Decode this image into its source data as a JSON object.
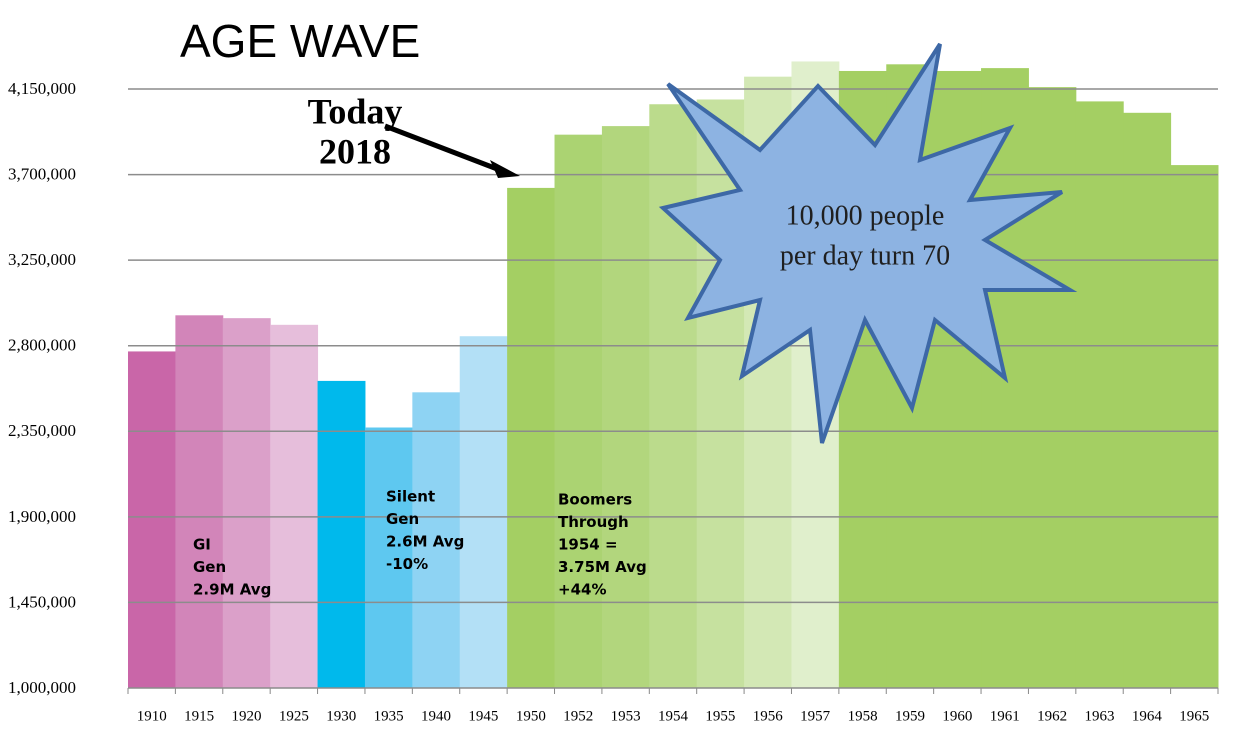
{
  "chart_data": {
    "type": "bar",
    "title": "AGE WAVE",
    "categories": [
      "1910",
      "1915",
      "1920",
      "1925",
      "1930",
      "1935",
      "1940",
      "1945",
      "1950",
      "1952",
      "1953",
      "1954",
      "1955",
      "1956",
      "1957",
      "1958",
      "1959",
      "1960",
      "1961",
      "1962",
      "1963",
      "1964",
      "1965"
    ],
    "values": [
      2770000,
      2960000,
      2945000,
      2910000,
      2615000,
      2370000,
      2555000,
      2850000,
      3630000,
      3910000,
      3955000,
      4070000,
      4095000,
      4215000,
      4295000,
      4245000,
      4280000,
      4245000,
      4260000,
      4160000,
      4085000,
      4025000,
      3750000
    ],
    "colors": [
      "#c966a8",
      "#d285b9",
      "#dba0c9",
      "#e6bedb",
      "#00b9ec",
      "#5ec8f0",
      "#8ed3f3",
      "#b3e0f6",
      "#a4cf63",
      "#abd372",
      "#b2d67d",
      "#bbdb8c",
      "#c6e19f",
      "#d3e8b5",
      "#e0efcc",
      "#a4cf63",
      "#a4cf63",
      "#a4cf63",
      "#a4cf63",
      "#a4cf63",
      "#a4cf63",
      "#a4cf63",
      "#a4cf63"
    ],
    "ylim": [
      1000000,
      4350000
    ],
    "yticks": [
      {
        "value": 1000000,
        "label": "1,000,000"
      },
      {
        "value": 1450000,
        "label": "1,450,000"
      },
      {
        "value": 1900000,
        "label": "1,900,000"
      },
      {
        "value": 2350000,
        "label": "2,350,000"
      },
      {
        "value": 2800000,
        "label": "2,800,000"
      },
      {
        "value": 3250000,
        "label": "3,250,000"
      },
      {
        "value": 3700000,
        "label": "3,700,000"
      },
      {
        "value": 4150000,
        "label": "4,150,000"
      }
    ],
    "grid": true,
    "annotations": [
      {
        "lines": [
          "GI",
          "Gen",
          "2.9M Avg"
        ]
      },
      {
        "lines": [
          "Silent",
          "Gen",
          "2.6M Avg",
          "-10%"
        ]
      },
      {
        "lines": [
          "Boomers",
          "Through",
          "1954 =",
          "3.75M Avg",
          "+44%"
        ]
      },
      {
        "lines": [
          "Today",
          "2018"
        ]
      },
      {
        "lines": [
          "10,000 people",
          "per day turn 70"
        ]
      }
    ]
  }
}
